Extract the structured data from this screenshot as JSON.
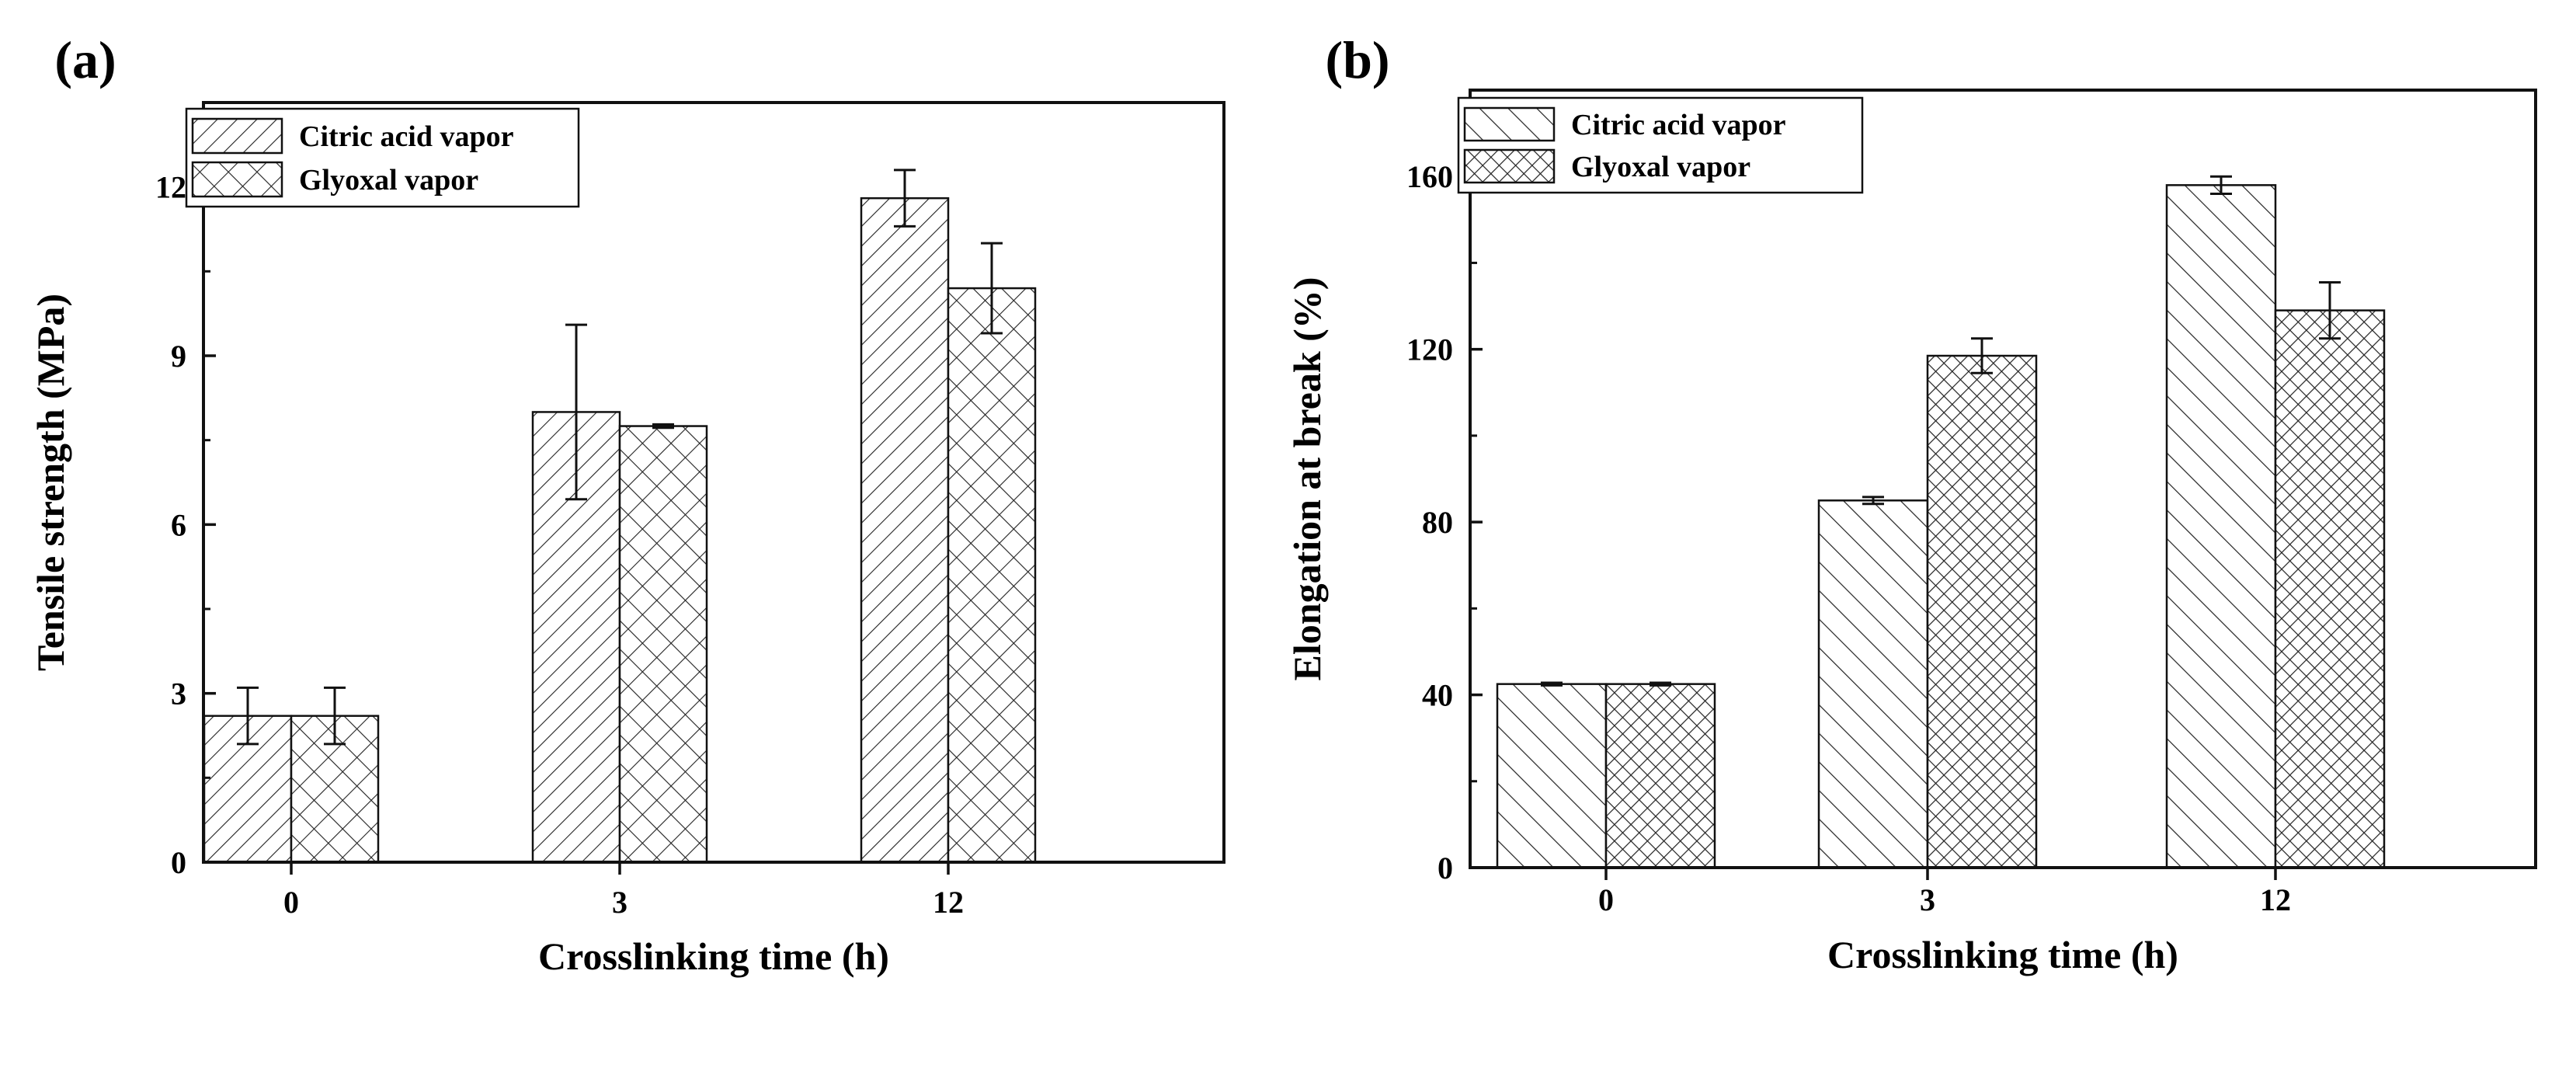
{
  "chart_data": [
    {
      "panel": "(a)",
      "type": "bar",
      "categories": [
        "0",
        "3",
        "12"
      ],
      "series": [
        {
          "name": "Citric acid vapor",
          "pattern": "diag-back",
          "values": [
            2.6,
            8.0,
            11.8
          ],
          "errors": [
            0.5,
            1.55,
            0.5
          ]
        },
        {
          "name": "Glyoxal vapor",
          "pattern": "cross",
          "values": [
            2.6,
            7.75,
            10.2
          ],
          "errors": [
            0.5,
            0.03,
            0.8
          ]
        }
      ],
      "xlabel": "Crosslinking time (h)",
      "ylabel": "Tensile strength (MPa)",
      "ylim": [
        0,
        13.5
      ],
      "yticks": [
        "0",
        "3",
        "6",
        "9",
        "12"
      ],
      "legend": "top-left"
    },
    {
      "panel": "(b)",
      "type": "bar",
      "categories": [
        "0",
        "3",
        "12"
      ],
      "series": [
        {
          "name": "Citric acid vapor",
          "pattern": "diag-fwd",
          "values": [
            42.5,
            85,
            158
          ],
          "errors": [
            0.3,
            0.8,
            2.0
          ]
        },
        {
          "name": "Glyoxal vapor",
          "pattern": "dense-cross",
          "values": [
            42.5,
            118.5,
            129
          ],
          "errors": [
            0.3,
            4.0,
            6.5
          ]
        }
      ],
      "xlabel": "Crosslinking time (h)",
      "ylabel": "Elongation at break (%)",
      "ylim": [
        0,
        180
      ],
      "yticks": [
        "0",
        "40",
        "80",
        "120",
        "160"
      ],
      "legend": "top-left"
    }
  ]
}
